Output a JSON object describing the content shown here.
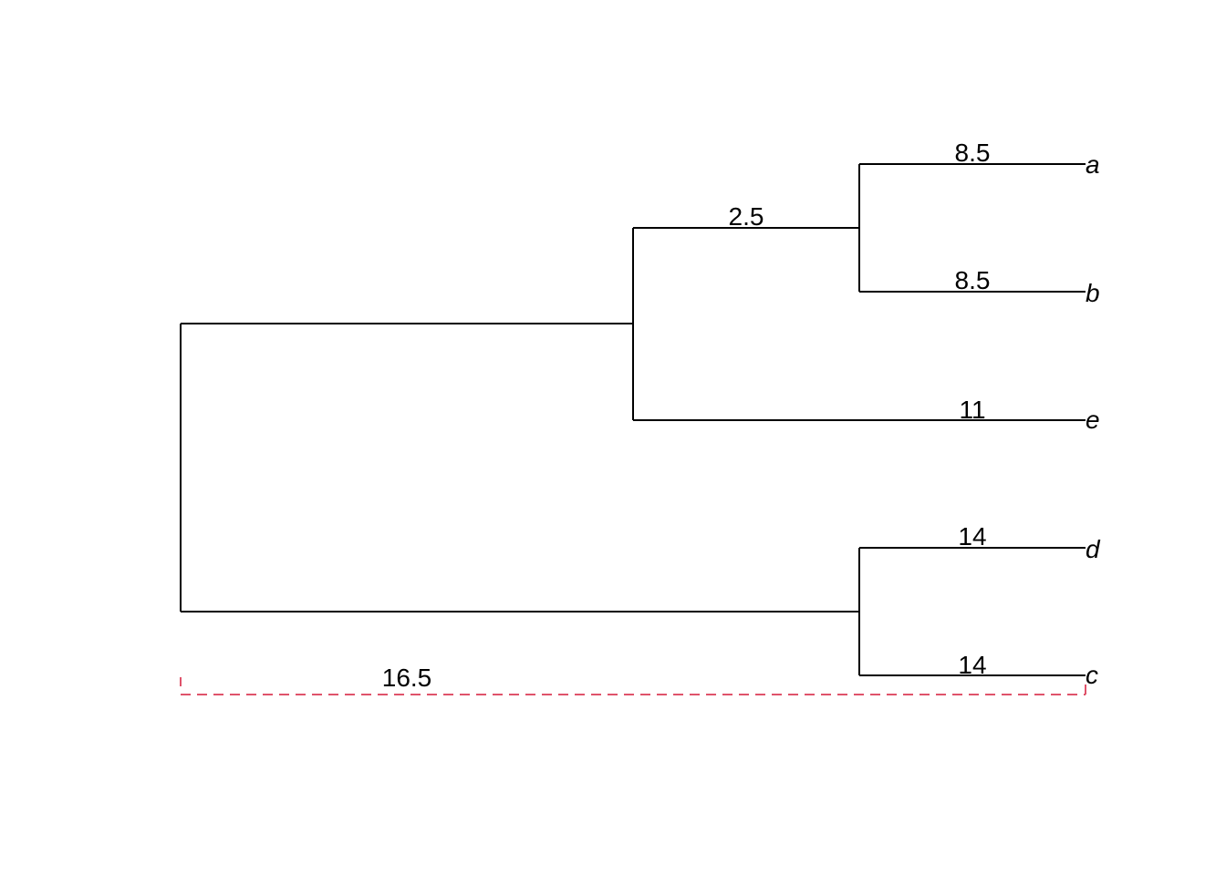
{
  "tree": {
    "tips": [
      {
        "id": "a",
        "label": "a",
        "edge_label": "8.5"
      },
      {
        "id": "b",
        "label": "b",
        "edge_label": "8.5"
      },
      {
        "id": "e",
        "label": "e",
        "edge_label": "11"
      },
      {
        "id": "d",
        "label": "d",
        "edge_label": "14"
      },
      {
        "id": "c",
        "label": "c",
        "edge_label": "14"
      }
    ],
    "internal_edges": [
      {
        "id": "ab-parent",
        "edge_label": "2.5"
      }
    ],
    "root_span": {
      "label": "16.5",
      "color": "#DF536B"
    }
  }
}
